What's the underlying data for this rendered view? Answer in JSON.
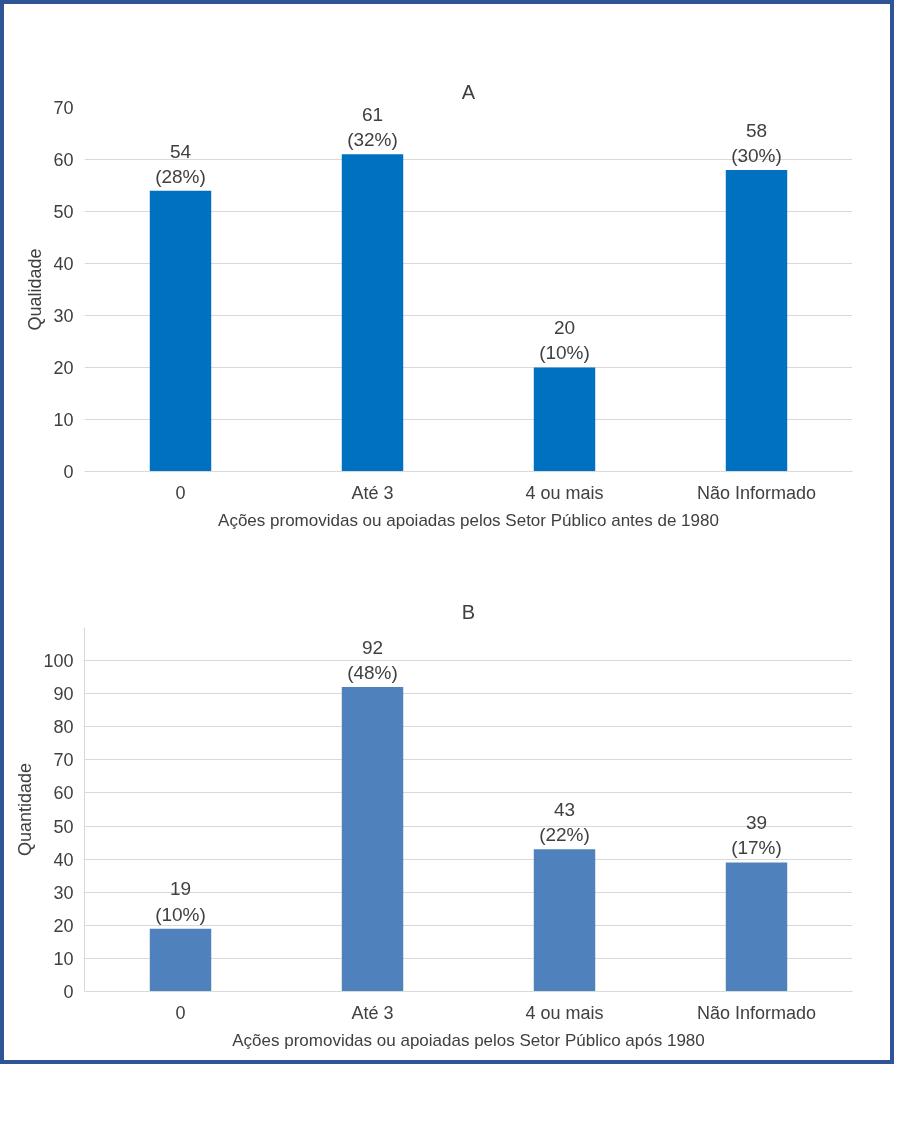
{
  "chart_data": [
    {
      "type": "bar",
      "title": "A",
      "xlabel": "Ações promovidas ou apoiadas pelos Setor Público antes de 1980",
      "ylabel": "Qualidade",
      "categories": [
        "0",
        "Até 3",
        "4 ou mais",
        "Não Informado"
      ],
      "values": [
        54,
        61,
        20,
        58
      ],
      "value_labels": [
        "54\n(28%)",
        "61\n(32%)",
        "20\n(10%)",
        "58\n(30%)"
      ],
      "color": "#0070c0",
      "ylim": [
        0,
        70
      ],
      "yticks": [
        0,
        10,
        20,
        30,
        40,
        50,
        60,
        70
      ],
      "grid": "y"
    },
    {
      "type": "bar",
      "title": "B",
      "xlabel": "Ações promovidas ou apoiadas pelos Setor Público após 1980",
      "ylabel": "Quantidade",
      "categories": [
        "0",
        "Até 3",
        "4 ou mais",
        "Não Informado"
      ],
      "values": [
        19,
        92,
        43,
        39
      ],
      "value_labels": [
        "19\n(10%)",
        "92\n(48%)",
        "43\n(22%)",
        "39\n(17%)"
      ],
      "color": "#4f81bd",
      "ylim": [
        0,
        110
      ],
      "yticks": [
        0,
        10,
        20,
        30,
        40,
        50,
        60,
        70,
        80,
        90,
        100
      ],
      "grid": "y"
    }
  ]
}
